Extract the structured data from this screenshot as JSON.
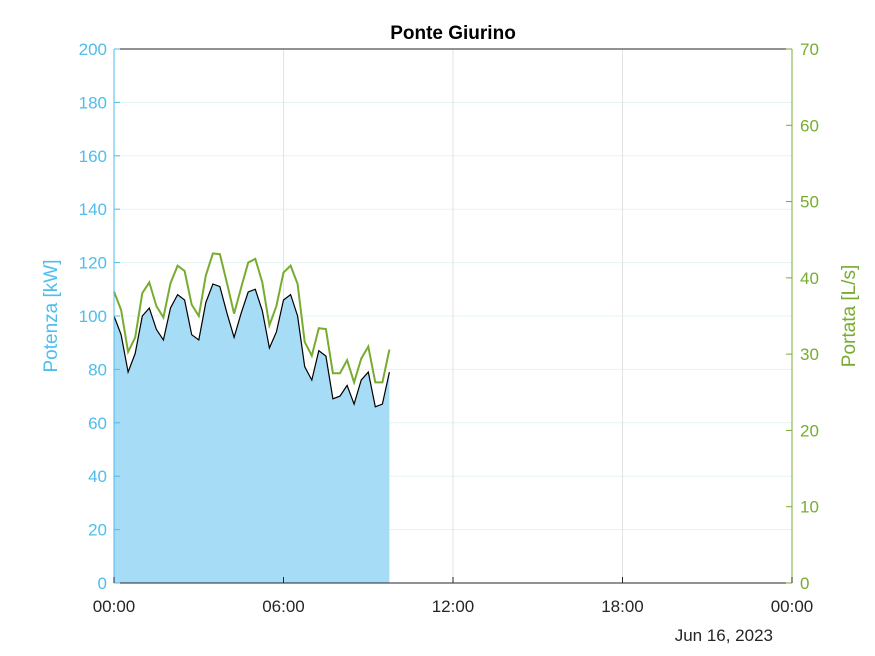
{
  "chart_data": {
    "type": "area",
    "title": "Ponte Giurino",
    "date_label": "Jun 16, 2023",
    "xlabel": "",
    "x_ticks": [
      "00:00",
      "06:00",
      "12:00",
      "18:00",
      "00:00"
    ],
    "x_range_hours": [
      0,
      24
    ],
    "grid": true,
    "y_left": {
      "label": "Potenza [kW]",
      "range": [
        0,
        200
      ],
      "ticks": [
        "0",
        "20",
        "40",
        "60",
        "80",
        "100",
        "120",
        "140",
        "160",
        "180",
        "200"
      ],
      "color": "#4dbeee",
      "fill_color": "#a6dcf5"
    },
    "y_right": {
      "label": "Portata [L/s]",
      "range": [
        0,
        70
      ],
      "ticks": [
        "0",
        "10",
        "20",
        "30",
        "40",
        "50",
        "60",
        "70"
      ],
      "color": "#77ac30"
    },
    "series": [
      {
        "axis": "left",
        "kind": "area",
        "color": "#000000",
        "x_hours": [
          0,
          0.25,
          0.5,
          0.75,
          1.0,
          1.25,
          1.5,
          1.75,
          2.0,
          2.25,
          2.5,
          2.75,
          3.0,
          3.25,
          3.5,
          3.75,
          4.0,
          4.25,
          4.5,
          4.75,
          5.0,
          5.25,
          5.5,
          5.75,
          6.0,
          6.25,
          6.5,
          6.75,
          7.0,
          7.25,
          7.5,
          7.75,
          8.0,
          8.25,
          8.5,
          8.75,
          9.0,
          9.25,
          9.5,
          9.75
        ],
        "values": [
          100,
          93,
          79,
          86,
          100,
          103,
          95,
          91,
          103,
          108,
          106,
          93,
          91,
          105,
          112,
          111,
          101,
          92,
          101,
          109,
          110,
          102,
          88,
          94,
          106,
          108,
          100,
          81,
          76,
          87,
          85,
          69,
          70,
          74,
          67,
          76,
          79,
          66,
          67,
          79
        ]
      },
      {
        "axis": "right",
        "kind": "line",
        "color": "#77ac30",
        "x_hours": [
          0,
          0.25,
          0.5,
          0.75,
          1.0,
          1.25,
          1.5,
          1.75,
          2.0,
          2.25,
          2.5,
          2.75,
          3.0,
          3.25,
          3.5,
          3.75,
          4.0,
          4.25,
          4.5,
          4.75,
          5.0,
          5.25,
          5.5,
          5.75,
          6.0,
          6.25,
          6.5,
          6.75,
          7.0,
          7.25,
          7.5,
          7.75,
          8.0,
          8.25,
          8.5,
          8.75,
          9.0,
          9.25,
          9.5,
          9.75
        ],
        "values": [
          38.2,
          35.8,
          30.3,
          32.2,
          38.0,
          39.4,
          36.3,
          34.8,
          39.3,
          41.6,
          40.9,
          36.5,
          35.0,
          40.3,
          43.2,
          43.1,
          39.3,
          35.3,
          38.7,
          42.0,
          42.5,
          39.4,
          33.8,
          36.3,
          40.7,
          41.6,
          39.2,
          31.6,
          29.8,
          33.4,
          33.3,
          27.5,
          27.5,
          29.2,
          26.3,
          29.4,
          31.0,
          26.3,
          26.3,
          30.6
        ]
      }
    ]
  }
}
